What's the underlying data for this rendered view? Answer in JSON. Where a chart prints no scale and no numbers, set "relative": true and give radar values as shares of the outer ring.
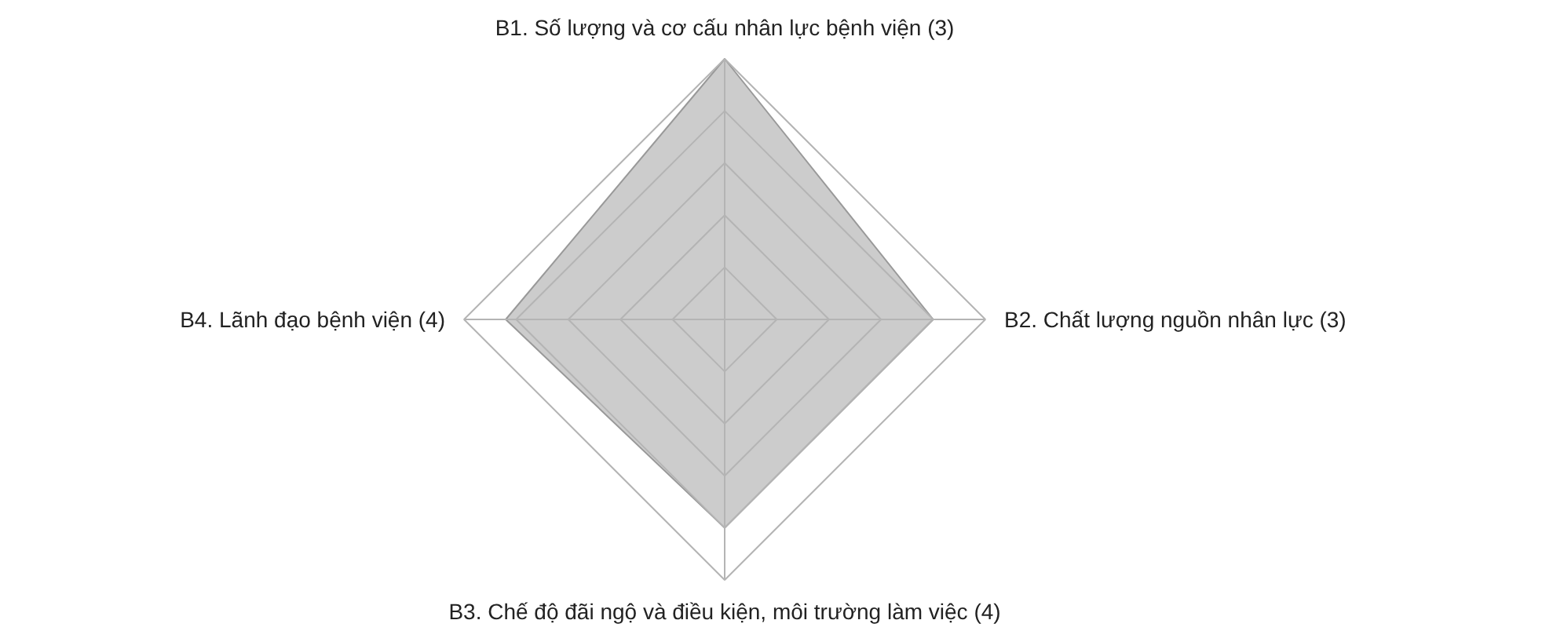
{
  "chart_data": {
    "type": "radar",
    "relative": true,
    "grid": true,
    "categories": [
      "B1. Số lượng và cơ cấu nhân lực bệnh viện (3)",
      "B2. Chất lượng nguồn nhân lực (3)",
      "B3. Chế độ đãi ngộ và điều kiện, môi trường làm việc (4)",
      "B4. Lãnh đạo bệnh viện (4)"
    ],
    "series": [
      {
        "color": "#999999",
        "values": [
          1.0,
          0.8,
          0.8,
          0.84
        ]
      }
    ]
  }
}
